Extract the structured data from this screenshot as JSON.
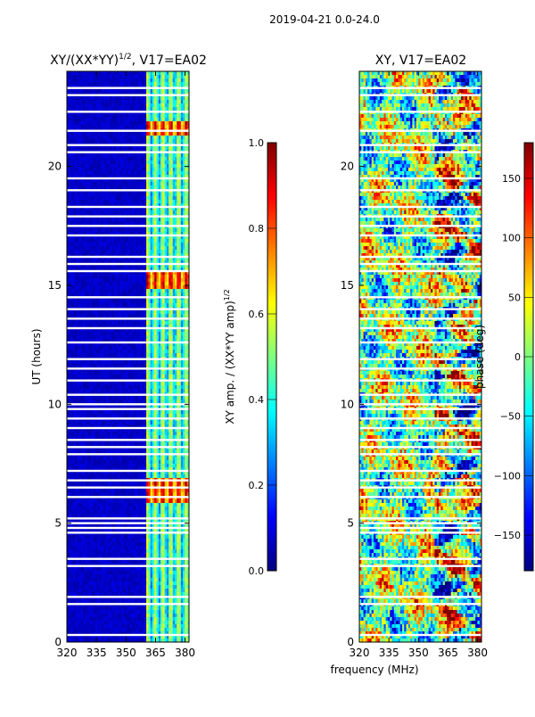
{
  "suptitle": "2019-04-21 0.0-24.0",
  "colors": {
    "jet": [
      "#00007f",
      "#0000ff",
      "#007fff",
      "#00ffff",
      "#7fff7f",
      "#ffff00",
      "#ff7f00",
      "#ff0000",
      "#7f0000"
    ],
    "gap": "#ffffff",
    "axis": "#000000"
  },
  "xlabel": "frequency (MHz)",
  "chart_data": [
    {
      "type": "heatmap",
      "title_main": "XY/(XX*YY)",
      "title_sup": "1/2",
      "title_rest": ", V17=EA02",
      "xlabel": "",
      "ylabel": "UT (hours)",
      "xlim": [
        320,
        382
      ],
      "ylim": [
        0,
        24
      ],
      "xticks": [
        320,
        335,
        350,
        365,
        380
      ],
      "yticks": [
        0,
        5,
        10,
        15,
        20
      ],
      "colorbar": {
        "label_main": "XY amp. / (XX*YY amp)",
        "label_sup": "1/2",
        "range": [
          0.0,
          1.0
        ],
        "ticks": [
          "0.0",
          "0.2",
          "0.4",
          "0.6",
          "0.8",
          "1.0"
        ]
      },
      "data_start_mhz": 360,
      "pattern": "low amplitude (~0.05) below 360 MHz; banded 0.3-0.6 above 360 MHz; peaks ~0.9 near 15 h and 6 h"
    },
    {
      "type": "heatmap",
      "title_main": "XY, V17=EA02",
      "xlabel": "",
      "ylabel": "",
      "xlim": [
        320,
        382
      ],
      "ylim": [
        0,
        24
      ],
      "xticks": [
        320,
        335,
        350,
        365,
        380
      ],
      "yticks": [
        0,
        5,
        10,
        15,
        20
      ],
      "colorbar": {
        "label_main": "phase (deg)",
        "range": [
          -180,
          180
        ],
        "ticks": [
          "−150",
          "−100",
          "−50",
          "0",
          "50",
          "100",
          "150"
        ]
      },
      "pattern": "noisy phase across full band, mostly -60 to 60 deg with red/blue streaks"
    }
  ],
  "flagged_hours": [
    0.3,
    1.6,
    1.9,
    3.2,
    3.5,
    4.6,
    4.8,
    5.0,
    5.2,
    6.1,
    6.5,
    6.8,
    7.2,
    7.9,
    8.2,
    8.5,
    9.0,
    9.4,
    9.8,
    10.0,
    10.4,
    11.0,
    11.5,
    11.9,
    12.6,
    13.2,
    13.6,
    14.0,
    14.5,
    15.6,
    15.9,
    16.2,
    17.1,
    17.5,
    17.9,
    18.3,
    19.0,
    19.5,
    20.6,
    20.9,
    21.5,
    22.3,
    23.0,
    23.3
  ]
}
